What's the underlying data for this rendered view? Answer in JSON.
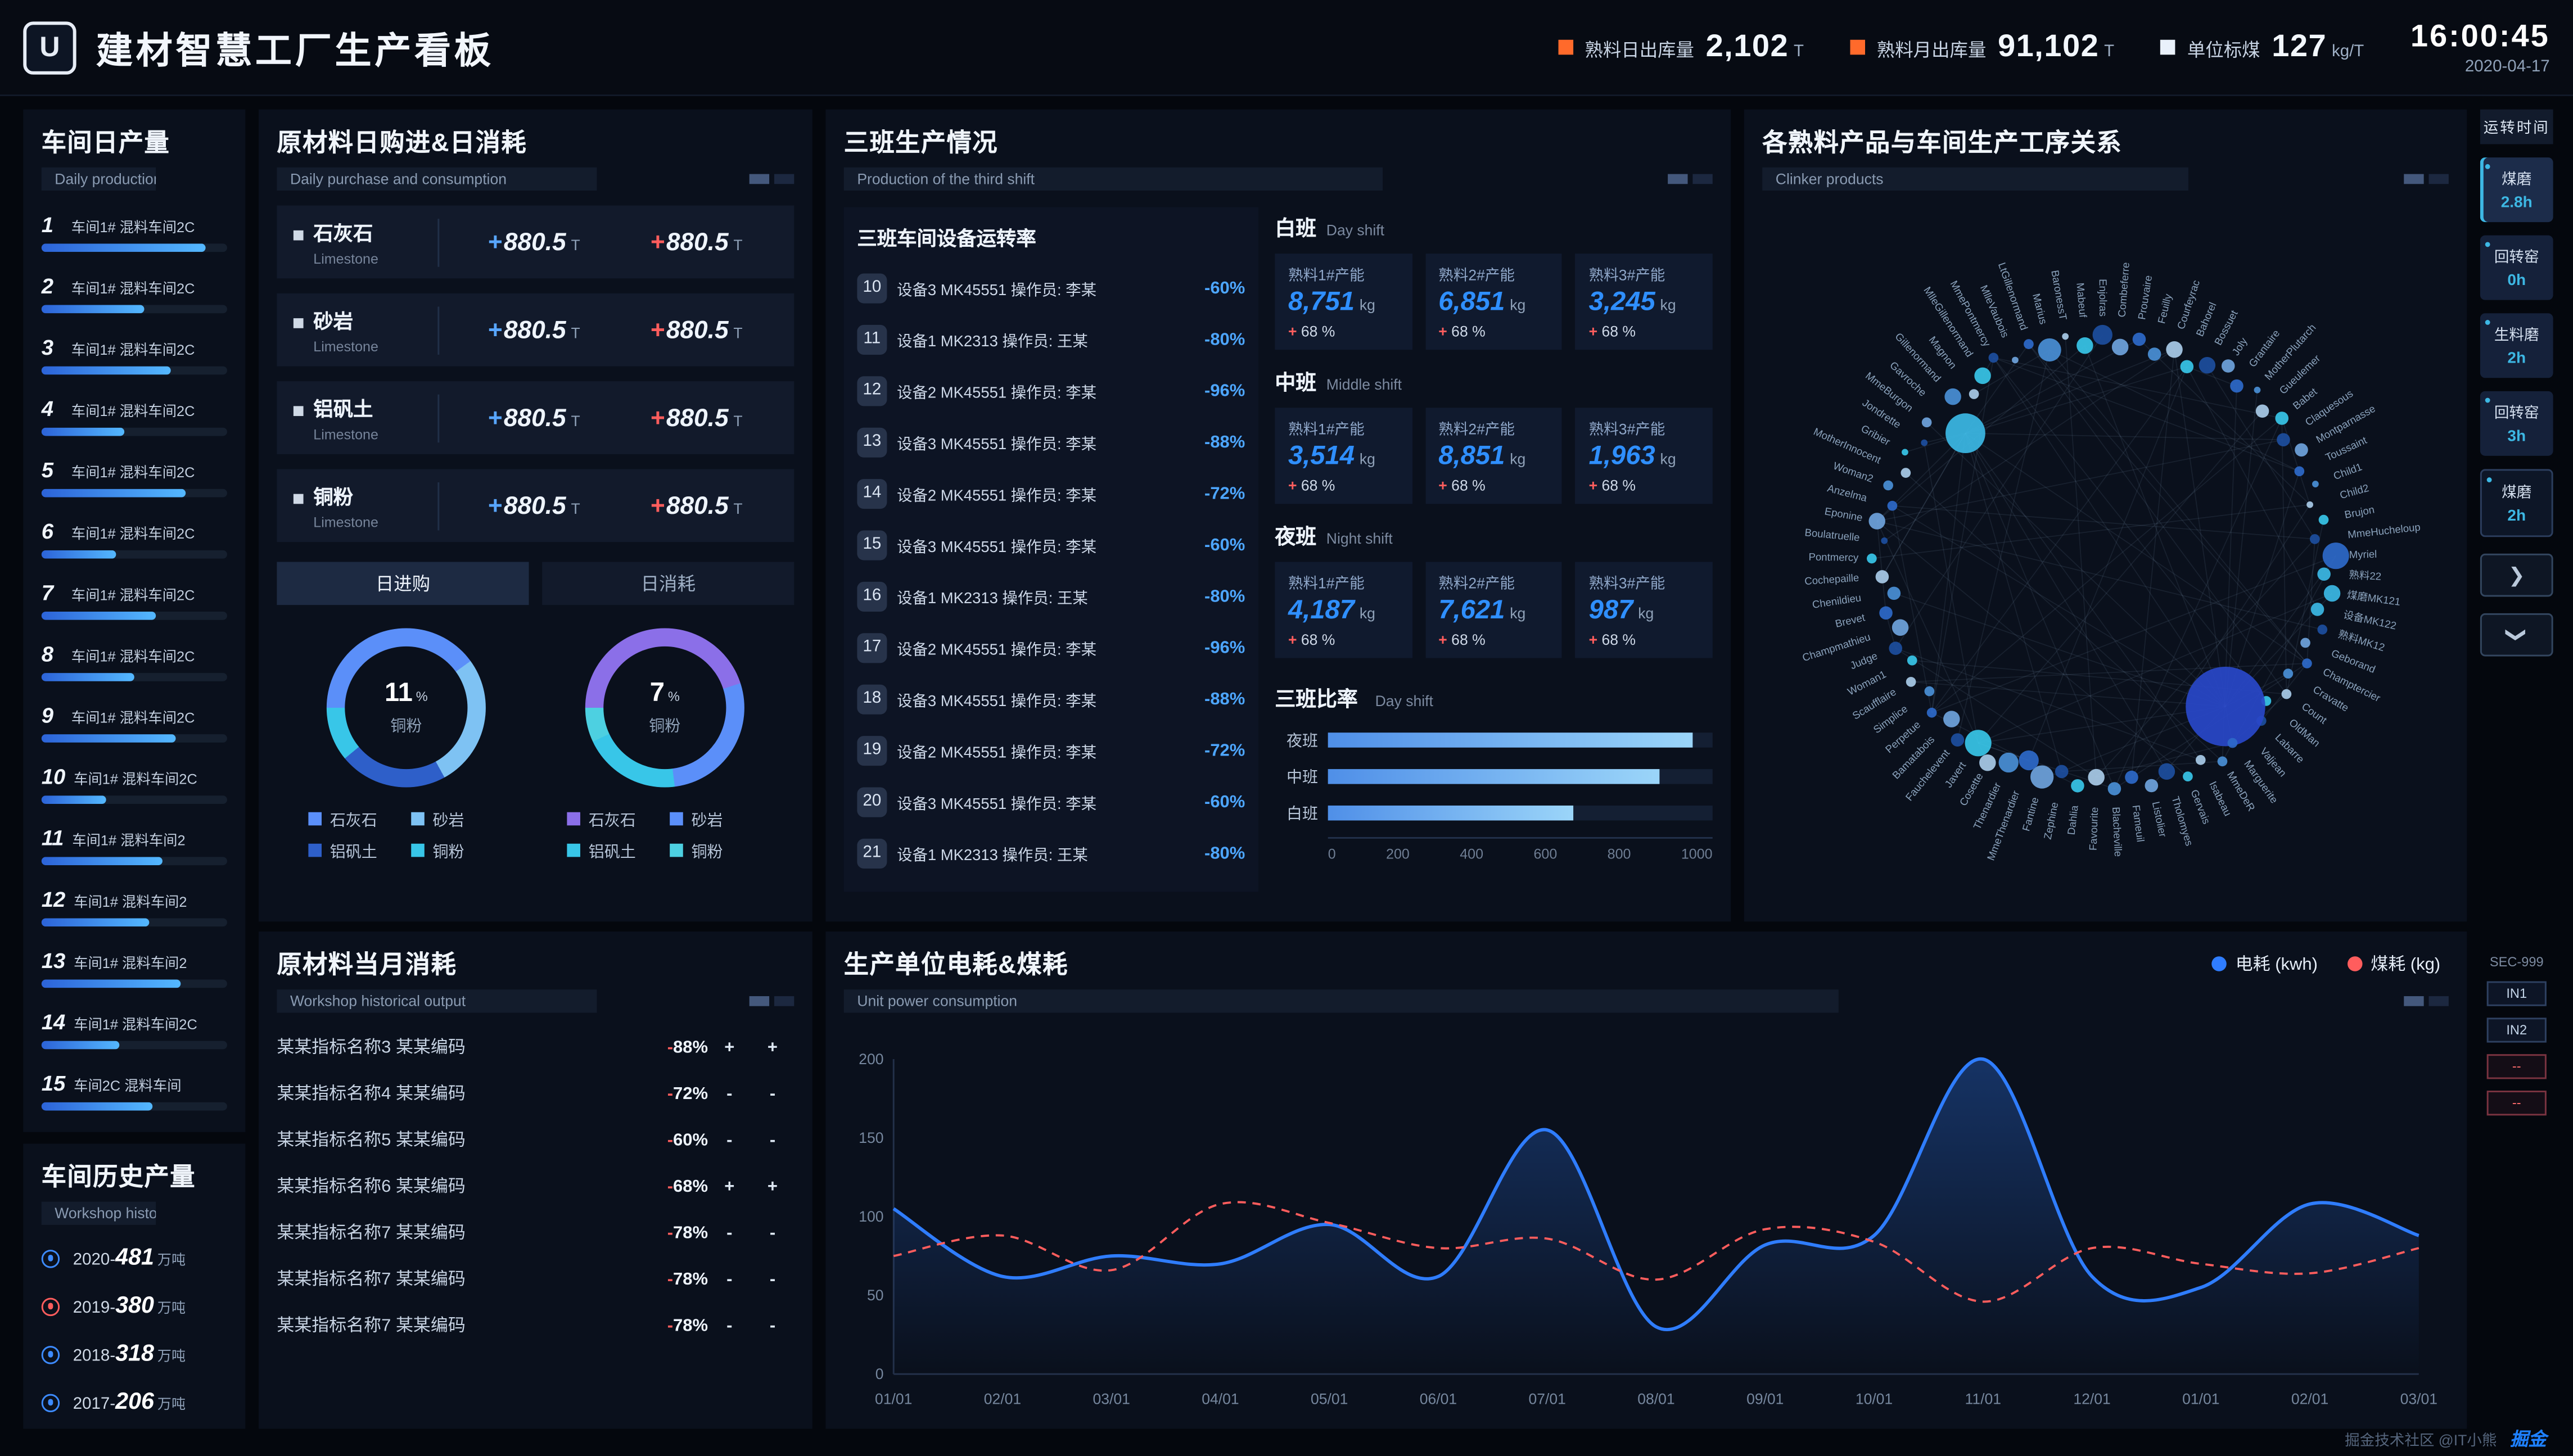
{
  "header": {
    "logo_letter": "U",
    "title": "建材智慧工厂生产看板",
    "stats": [
      {
        "label": "熟料日出库量",
        "value": "2,102",
        "unit": "T",
        "color": "#ff6a2b"
      },
      {
        "label": "熟料月出库量",
        "value": "91,102",
        "unit": "T",
        "color": "#ff6a2b"
      },
      {
        "label": "单位标煤",
        "value": "127",
        "unit": "kg/T",
        "color": "#e9f1fb"
      }
    ],
    "time": "16:00:45",
    "date": "2020-04-17"
  },
  "daily": {
    "title": "车间日产量",
    "subtitle": "Daily production",
    "items": [
      {
        "no": "1",
        "name": "车间1# 混料车间2C",
        "pct": 88
      },
      {
        "no": "2",
        "name": "车间1# 混料车间2C",
        "pct": 55
      },
      {
        "no": "3",
        "name": "车间1# 混料车间2C",
        "pct": 70
      },
      {
        "no": "4",
        "name": "车间1# 混料车间2C",
        "pct": 45
      },
      {
        "no": "5",
        "name": "车间1# 混料车间2C",
        "pct": 78
      },
      {
        "no": "6",
        "name": "车间1# 混料车间2C",
        "pct": 40
      },
      {
        "no": "7",
        "name": "车间1# 混料车间2C",
        "pct": 62
      },
      {
        "no": "8",
        "name": "车间1# 混料车间2C",
        "pct": 50
      },
      {
        "no": "9",
        "name": "车间1# 混料车间2C",
        "pct": 72
      },
      {
        "no": "10",
        "name": "车间1# 混料车间2C",
        "pct": 35
      },
      {
        "no": "11",
        "name": "车间1# 混料车间2",
        "pct": 65
      },
      {
        "no": "12",
        "name": "车间1# 混料车间2",
        "pct": 58
      },
      {
        "no": "13",
        "name": "车间1# 混料车间2",
        "pct": 75
      },
      {
        "no": "14",
        "name": "车间1# 混料车间2C",
        "pct": 42
      },
      {
        "no": "15",
        "name": "车间2C 混料车间",
        "pct": 60
      }
    ]
  },
  "history": {
    "title": "车间历史产量",
    "subtitle": "Workshop historical output",
    "items": [
      {
        "label": "2020-",
        "value": "481",
        "unit": "万吨",
        "color": "#3d8bff"
      },
      {
        "label": "2019-",
        "value": "380",
        "unit": "万吨",
        "color": "#ff5d5d"
      },
      {
        "label": "2018-",
        "value": "318",
        "unit": "万吨",
        "color": "#3d8bff"
      },
      {
        "label": "2017-",
        "value": "206",
        "unit": "万吨",
        "color": "#3d8bff"
      }
    ]
  },
  "materials": {
    "title": "原材料日购进&日消耗",
    "subtitle": "Daily purchase and consumption",
    "tabs": [
      "日进购",
      "日消耗"
    ],
    "rows": [
      {
        "name": "石灰石",
        "en": "Limestone",
        "purchase": "880.5",
        "consume": "880.5",
        "unit": "T"
      },
      {
        "name": "砂岩",
        "en": "Limestone",
        "purchase": "880.5",
        "consume": "880.5",
        "unit": "T"
      },
      {
        "name": "铝矾土",
        "en": "Limestone",
        "purchase": "880.5",
        "consume": "880.5",
        "unit": "T"
      },
      {
        "name": "铜粉",
        "en": "Limestone",
        "purchase": "880.5",
        "consume": "880.5",
        "unit": "T"
      }
    ]
  },
  "monthly": {
    "title": "原材料当月消耗",
    "subtitle": "Workshop historical output",
    "rows": [
      {
        "name": "某某指标名称3 某某编码",
        "sign": "-",
        "value": "88%",
        "f1": "+",
        "f2": "+"
      },
      {
        "name": "某某指标名称4 某某编码",
        "sign": "-",
        "value": "72%",
        "f1": "-",
        "f2": "-"
      },
      {
        "name": "某某指标名称5 某某编码",
        "sign": "-",
        "value": "60%",
        "f1": "-",
        "f2": "-"
      },
      {
        "name": "某某指标名称6 某某编码",
        "sign": "-",
        "value": "68%",
        "f1": "+",
        "f2": "+"
      },
      {
        "name": "某某指标名称7 某某编码",
        "sign": "-",
        "value": "78%",
        "f1": "-",
        "f2": "-"
      },
      {
        "name": "某某指标名称7 某某编码",
        "sign": "-",
        "value": "78%",
        "f1": "-",
        "f2": "-"
      },
      {
        "name": "某某指标名称7 某某编码",
        "sign": "-",
        "value": "78%",
        "f1": "-",
        "f2": "-"
      }
    ]
  },
  "shifts": {
    "title": "三班生产情况",
    "subtitle": "Production of the third shift",
    "device_title": "三班车间设备运转率",
    "devices": [
      {
        "no": "10",
        "text": "设备3 MK45551 操作员: 李某",
        "sign": "-",
        "value": "60%"
      },
      {
        "no": "11",
        "text": "设备1 MK2313 操作员: 王某",
        "sign": "-",
        "value": "80%"
      },
      {
        "no": "12",
        "text": "设备2 MK45551 操作员: 李某",
        "sign": "-",
        "value": "96%"
      },
      {
        "no": "13",
        "text": "设备3 MK45551 操作员: 李某",
        "sign": "-",
        "value": "88%"
      },
      {
        "no": "14",
        "text": "设备2 MK45551 操作员: 李某",
        "sign": "-",
        "value": "72%"
      },
      {
        "no": "15",
        "text": "设备3 MK45551 操作员: 李某",
        "sign": "-",
        "value": "60%"
      },
      {
        "no": "16",
        "text": "设备1 MK2313 操作员: 王某",
        "sign": "-",
        "value": "80%"
      },
      {
        "no": "17",
        "text": "设备2 MK45551 操作员: 李某",
        "sign": "-",
        "value": "96%"
      },
      {
        "no": "18",
        "text": "设备3 MK45551 操作员: 李某",
        "sign": "-",
        "value": "88%"
      },
      {
        "no": "19",
        "text": "设备2 MK45551 操作员: 李某",
        "sign": "-",
        "value": "72%"
      },
      {
        "no": "20",
        "text": "设备3 MK45551 操作员: 李某",
        "sign": "-",
        "value": "60%"
      },
      {
        "no": "21",
        "text": "设备1 MK2313 操作员: 王某",
        "sign": "-",
        "value": "80%"
      }
    ],
    "groups": [
      {
        "name": "白班",
        "en": "Day shift",
        "cards": [
          {
            "label": "熟料1#产能",
            "value": "8,751",
            "unit": "kg",
            "sign": "+",
            "delta": "68 %"
          },
          {
            "label": "熟料2#产能",
            "value": "6,851",
            "unit": "kg",
            "sign": "+",
            "delta": "68 %"
          },
          {
            "label": "熟料3#产能",
            "value": "3,245",
            "unit": "kg",
            "sign": "+",
            "delta": "68 %"
          }
        ]
      },
      {
        "name": "中班",
        "en": "Middle shift",
        "cards": [
          {
            "label": "熟料1#产能",
            "value": "3,514",
            "unit": "kg",
            "sign": "+",
            "delta": "68 %"
          },
          {
            "label": "熟料2#产能",
            "value": "8,851",
            "unit": "kg",
            "sign": "+",
            "delta": "68 %"
          },
          {
            "label": "熟料3#产能",
            "value": "1,963",
            "unit": "kg",
            "sign": "+",
            "delta": "68 %"
          }
        ]
      },
      {
        "name": "夜班",
        "en": "Night shift",
        "cards": [
          {
            "label": "熟料1#产能",
            "value": "4,187",
            "unit": "kg",
            "sign": "+",
            "delta": "68 %"
          },
          {
            "label": "熟料2#产能",
            "value": "7,621",
            "unit": "kg",
            "sign": "+",
            "delta": "68 %"
          },
          {
            "label": "熟料3#产能",
            "value": "987",
            "unit": "kg",
            "sign": "+",
            "delta": "68 %"
          }
        ]
      }
    ],
    "ratio_title": "三班比率",
    "ratio_en": "Day shift"
  },
  "power": {
    "title": "生产单位电耗&煤耗",
    "subtitle": "Unit power consumption"
  },
  "network": {
    "title": "各熟料产品与车间生产工序关系",
    "subtitle": "Clinker products",
    "nodes": [
      "Myriel",
      "熟料22",
      "煤磨MK121",
      "设备MK122",
      "熟料MK12",
      "Geborand",
      "Champtercier",
      "Cravatte",
      "Count",
      "OldMan",
      "Labarre",
      "Valjean",
      "Marguerite",
      "MmeDeR",
      "Isabeau",
      "Gervais",
      "Tholomyes",
      "Listolier",
      "Fameuil",
      "Blacheville",
      "Favourite",
      "Dahlia",
      "Zephine",
      "Fantine",
      "MmeThenardier",
      "Thenardier",
      "Cosette",
      "Javert",
      "Fauchelevent",
      "Bamatabois",
      "Perpetue",
      "Simplice",
      "Scaufflaire",
      "Woman1",
      "Judge",
      "Champmathieu",
      "Brevet",
      "Chenildieu",
      "Cochepaille",
      "Pontmercy",
      "Boulatruelle",
      "Eponine",
      "Anzelma",
      "Woman2",
      "MotherInnocent",
      "Gribier",
      "Jondrette",
      "MmeBurgon",
      "Gavroche",
      "Gillenormand",
      "Magnon",
      "MlleGillenormand",
      "MmePontmercy",
      "MlleVaubois",
      "LtGillenormand",
      "Marius",
      "BaronessT",
      "Mabeuf",
      "Enjolras",
      "Combeferre",
      "Prouvaire",
      "Feuilly",
      "Courfeyrac",
      "Bahorel",
      "Bossuet",
      "Joly",
      "Grantaire",
      "MotherPlutarch",
      "Gueulemer",
      "Babet",
      "Claquesous",
      "Montparnasse",
      "Toussaint",
      "Child1",
      "Child2",
      "Brujon",
      "MmeHucheloup"
    ],
    "values": [
      8,
      4,
      5,
      4,
      3,
      3,
      3,
      3,
      3,
      3,
      3,
      24,
      3,
      3,
      3,
      3,
      5,
      4,
      4,
      4,
      5,
      4,
      4,
      7,
      6,
      6,
      5,
      8,
      4,
      5,
      3,
      3,
      3,
      3,
      4,
      5,
      4,
      4,
      4,
      3,
      2,
      5,
      3,
      3,
      3,
      2,
      2,
      3,
      12,
      5,
      3,
      5,
      3,
      2,
      3,
      7,
      2,
      5,
      6,
      5,
      4,
      4,
      5,
      4,
      5,
      4,
      4,
      2,
      4,
      4,
      4,
      4,
      3,
      2,
      2,
      3,
      3
    ],
    "palette": [
      "#2e69c9",
      "#4a8fd6",
      "#a9cbe8",
      "#38c6e8",
      "#1d4e9e",
      "#6fa3dc"
    ],
    "colors_override": {
      "1": "#3cb9e5",
      "2": "#3cb9e5",
      "3": "#3cb9e5",
      "11": "#2948c9",
      "48": "#3cb9e5"
    }
  },
  "rail": {
    "title": "运转时间",
    "items": [
      {
        "name": "煤磨",
        "value": "2.8h",
        "state": "active"
      },
      {
        "name": "回转窑",
        "value": "0h",
        "state": ""
      },
      {
        "name": "生料磨",
        "value": "2h",
        "state": ""
      },
      {
        "name": "回转窑",
        "value": "3h",
        "state": ""
      },
      {
        "name": "煤磨",
        "value": "2h",
        "state": "selected"
      }
    ],
    "nav_next": "❯",
    "nav_down": "❯",
    "sec_label": "SEC-999",
    "ports": [
      {
        "label": "IN1",
        "alarm": false
      },
      {
        "label": "IN2",
        "alarm": false
      },
      {
        "label": "--",
        "alarm": true
      },
      {
        "label": "--",
        "alarm": true
      }
    ]
  },
  "footer": {
    "credit": "掘金技术社区 @IT小熊",
    "logo": "掘金"
  },
  "chart_data": [
    {
      "id": "power_consumption",
      "type": "line",
      "title": "生产单位电耗&煤耗",
      "x": [
        "01/01",
        "02/01",
        "03/01",
        "04/01",
        "05/01",
        "06/01",
        "07/01",
        "08/01",
        "09/01",
        "10/01",
        "11/01",
        "12/01",
        "01/01",
        "02/01",
        "03/01"
      ],
      "series": [
        {
          "name": "电耗 (kwh)",
          "color": "#2f7dff",
          "style": "solid",
          "values": [
            105,
            62,
            75,
            70,
            95,
            62,
            155,
            30,
            82,
            88,
            200,
            62,
            55,
            108,
            88
          ]
        },
        {
          "name": "煤耗 (kg)",
          "color": "#ff5d5d",
          "style": "dashed",
          "values": [
            75,
            88,
            66,
            108,
            96,
            80,
            86,
            60,
            92,
            84,
            46,
            80,
            70,
            64,
            80
          ]
        }
      ],
      "ylim": [
        0,
        200
      ],
      "yticks": [
        0,
        50,
        100,
        150,
        200
      ],
      "legend_position": "top-right",
      "grid": false
    },
    {
      "id": "donut_daily_purchase",
      "type": "pie",
      "title": "日进购",
      "center_value": "11",
      "center_unit": "%",
      "center_label": "铜粉",
      "segments": [
        {
          "label": "石灰石",
          "color": "#5b8ff9",
          "pct": 40
        },
        {
          "label": "砂岩",
          "color": "#7ec2f3",
          "pct": 27
        },
        {
          "label": "铝矾土",
          "color": "#2e5fc9",
          "pct": 22
        },
        {
          "label": "铜粉",
          "color": "#38c6e8",
          "pct": 11
        }
      ]
    },
    {
      "id": "donut_daily_consumption",
      "type": "pie",
      "title": "日消耗",
      "center_value": "7",
      "center_unit": "%",
      "center_label": "铜粉",
      "segments": [
        {
          "label": "石灰石",
          "color": "#8b6fe8",
          "pct": 45
        },
        {
          "label": "砂岩",
          "color": "#5b8ff9",
          "pct": 28
        },
        {
          "label": "铝矾土",
          "color": "#38c6e8",
          "pct": 20
        },
        {
          "label": "铜粉",
          "color": "#4dd0e1",
          "pct": 7
        }
      ]
    },
    {
      "id": "shift_ratio",
      "type": "bar",
      "orientation": "horizontal",
      "title": "三班比率",
      "categories": [
        "夜班",
        "中班",
        "白班"
      ],
      "values": [
        950,
        860,
        640
      ],
      "xlim": [
        0,
        1000
      ],
      "ticks": [
        0,
        200,
        400,
        600,
        800,
        1000
      ],
      "color": "#7ec2f3"
    }
  ]
}
